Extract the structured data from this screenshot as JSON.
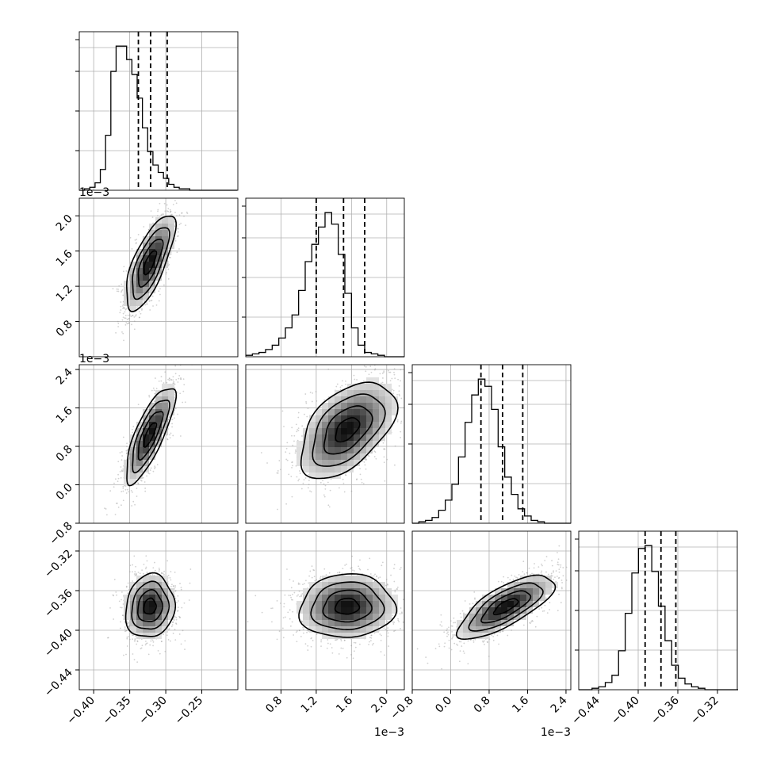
{
  "chart_data": {
    "type": "corner",
    "parameters": [
      {
        "tick_values": [
          -0.4,
          -0.35,
          -0.3,
          -0.25
        ],
        "tick_labels": [
          "−0.40",
          "−0.35",
          "−0.30",
          "−0.25"
        ],
        "range": [
          -0.42,
          -0.2
        ],
        "offset_label": ""
      },
      {
        "tick_values": [
          0.8,
          1.2,
          1.6,
          2.0
        ],
        "tick_labels": [
          "0.8",
          "1.2",
          "1.6",
          "2.0"
        ],
        "range": [
          0.4,
          2.2
        ],
        "offset_label": "1e−3"
      },
      {
        "tick_values": [
          -0.8,
          0.0,
          0.8,
          1.6,
          2.4
        ],
        "tick_labels": [
          "−0.8",
          "0.0",
          "0.8",
          "1.6",
          "2.4"
        ],
        "range": [
          -0.8,
          2.5
        ],
        "offset_label": "1e−3"
      },
      {
        "tick_values": [
          -0.44,
          -0.4,
          -0.36,
          -0.32
        ],
        "tick_labels": [
          "−0.44",
          "−0.40",
          "−0.36",
          "−0.32"
        ],
        "range": [
          -0.46,
          -0.3
        ],
        "offset_label": ""
      }
    ],
    "quantiles": [
      [
        -0.338,
        -0.321,
        -0.298
      ],
      [
        1.2,
        1.51,
        1.75
      ],
      [
        0.63,
        1.08,
        1.5
      ],
      [
        -0.393,
        -0.377,
        -0.362
      ]
    ],
    "histograms": [
      {
        "edges_start": -0.42,
        "bin_width": 0.0073,
        "counts": [
          0,
          1,
          2,
          5,
          14,
          37,
          80,
          97,
          97,
          88,
          78,
          62,
          42,
          26,
          17,
          12,
          8,
          4,
          2,
          1,
          1,
          0,
          0,
          0,
          0,
          0,
          0,
          0,
          0,
          0
        ]
      },
      {
        "edges_start": 0.4,
        "bin_width": 0.075,
        "counts": [
          1,
          2,
          3,
          5,
          8,
          13,
          20,
          29,
          46,
          66,
          78,
          90,
          100,
          92,
          71,
          44,
          20,
          8,
          3,
          2,
          1,
          0,
          0,
          0
        ]
      },
      {
        "edges_start": -0.8,
        "bin_width": 0.1375,
        "counts": [
          0,
          1,
          2,
          4,
          9,
          16,
          27,
          46,
          70,
          89,
          100,
          95,
          79,
          53,
          32,
          20,
          10,
          5,
          2,
          1,
          0,
          0,
          0,
          0
        ]
      },
      {
        "edges_start": -0.46,
        "bin_width": 0.0067,
        "counts": [
          0,
          0,
          1,
          2,
          5,
          10,
          27,
          53,
          81,
          98,
          100,
          82,
          58,
          34,
          17,
          8,
          4,
          2,
          1,
          0,
          0,
          0,
          0,
          0
        ]
      }
    ],
    "pairs": [
      {
        "x": 0,
        "y": 1,
        "center": [
          -0.322,
          1.47
        ],
        "sigma": [
          0.017,
          0.27
        ],
        "rho": 0.72
      },
      {
        "x": 0,
        "y": 2,
        "center": [
          -0.322,
          1.05
        ],
        "sigma": [
          0.017,
          0.5
        ],
        "rho": 0.78
      },
      {
        "x": 1,
        "y": 2,
        "center": [
          1.55,
          1.15
        ],
        "sigma": [
          0.27,
          0.5
        ],
        "rho": 0.5
      },
      {
        "x": 0,
        "y": 3,
        "center": [
          -0.322,
          -0.376
        ],
        "sigma": [
          0.017,
          0.016
        ],
        "rho": 0.1
      },
      {
        "x": 1,
        "y": 3,
        "center": [
          1.55,
          -0.376
        ],
        "sigma": [
          0.27,
          0.016
        ],
        "rho": 0.05
      },
      {
        "x": 2,
        "y": 3,
        "center": [
          1.15,
          -0.376
        ],
        "sigma": [
          0.5,
          0.016
        ],
        "rho": 0.74
      }
    ],
    "contour_levels_sigma": [
      0.5,
      1.0,
      1.5,
      2.0
    ],
    "grid": true,
    "legend": "none"
  }
}
